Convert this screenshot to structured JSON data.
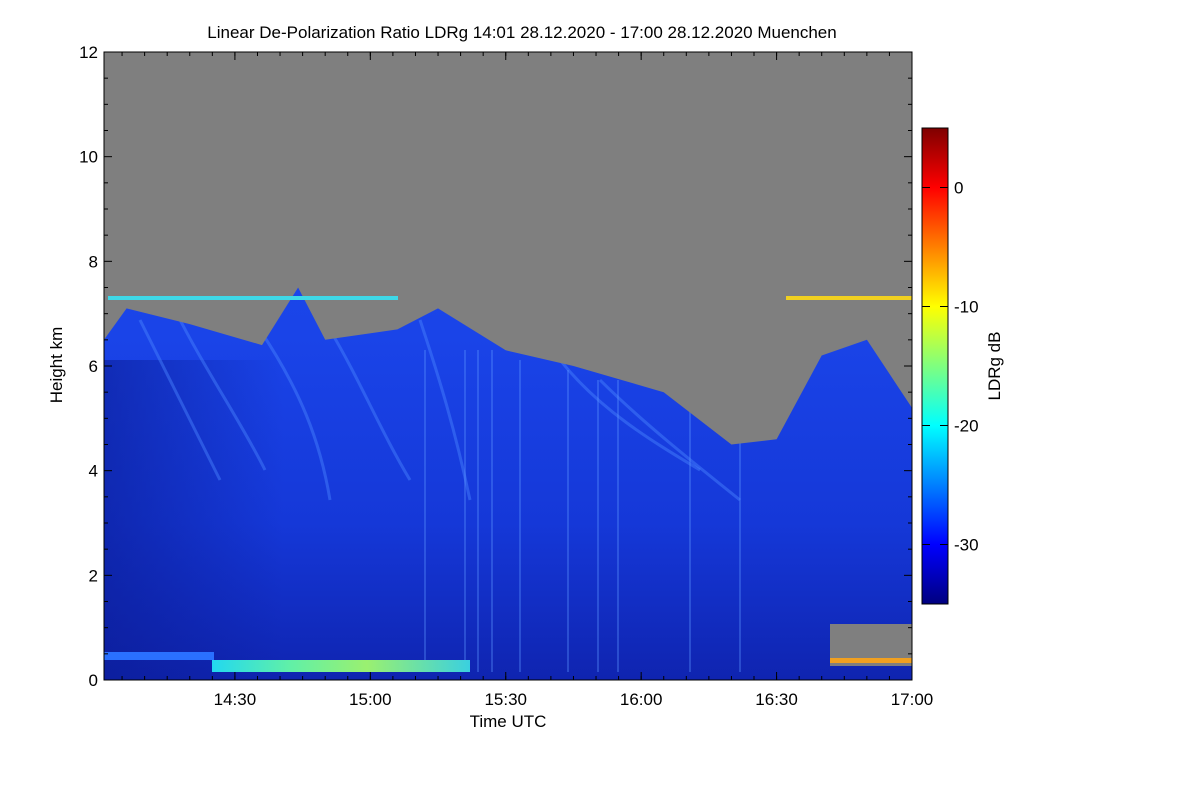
{
  "chart_data": {
    "type": "heatmap",
    "title": "Linear De-Polarization Ratio LDRg   14:01 28.12.2020 - 17:00 28.12.2020 Muenchen",
    "xlabel": "Time UTC",
    "ylabel": "Height km",
    "xlim": [
      "14:01",
      "17:00"
    ],
    "ylim": [
      0,
      12
    ],
    "x_ticks": [
      "14:30",
      "15:00",
      "15:30",
      "16:00",
      "16:30",
      "17:00"
    ],
    "y_ticks": [
      "0",
      "2",
      "4",
      "6",
      "8",
      "10",
      "12"
    ],
    "colorbar": {
      "label": "LDRg dB",
      "range": [
        -35,
        5
      ],
      "ticks": [
        "0",
        "-10",
        "-20",
        "-30"
      ],
      "colormap": "jet"
    },
    "no_signal_color": "#7f7f7f",
    "cloud_top_km": [
      {
        "time": "14:01",
        "top": 6.5
      },
      {
        "time": "14:06",
        "top": 7.1
      },
      {
        "time": "14:20",
        "top": 6.8
      },
      {
        "time": "14:36",
        "top": 6.4
      },
      {
        "time": "14:44",
        "top": 7.5
      },
      {
        "time": "14:50",
        "top": 6.5
      },
      {
        "time": "15:06",
        "top": 6.7
      },
      {
        "time": "15:15",
        "top": 7.1
      },
      {
        "time": "15:30",
        "top": 6.3
      },
      {
        "time": "15:45",
        "top": 6.0
      },
      {
        "time": "16:05",
        "top": 5.5
      },
      {
        "time": "16:20",
        "top": 4.5
      },
      {
        "time": "16:30",
        "top": 4.6
      },
      {
        "time": "16:40",
        "top": 6.2
      },
      {
        "time": "16:50",
        "top": 6.5
      },
      {
        "time": "17:00",
        "top": 5.2
      }
    ],
    "bands_km": [
      {
        "name": "layer at 7.3 km",
        "height": 7.3,
        "ldr_db": -18
      },
      {
        "name": "near-surface layer",
        "height": 0.15,
        "ldr_db": -22
      }
    ]
  }
}
